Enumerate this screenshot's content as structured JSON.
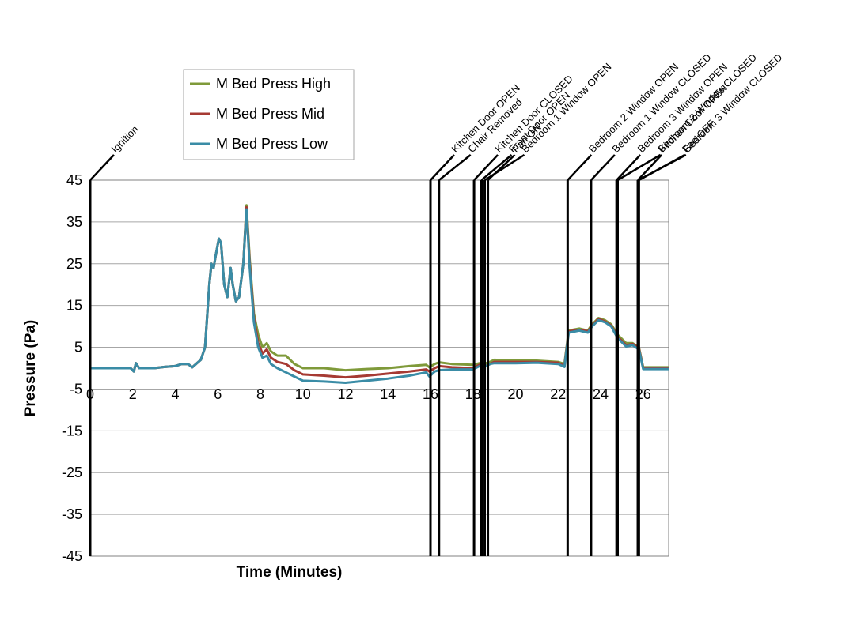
{
  "chart_data": {
    "type": "line",
    "title": "",
    "xlabel": "Time (Minutes)",
    "ylabel": "Pressure (Pa)",
    "xlim": [
      0,
      27.2
    ],
    "ylim": [
      -45,
      45
    ],
    "x_ticks": [
      "0",
      "2",
      "4",
      "6",
      "8",
      "10",
      "12",
      "14",
      "16",
      "18",
      "20",
      "22",
      "24",
      "26"
    ],
    "y_ticks": [
      "45",
      "35",
      "25",
      "15",
      "5",
      "-5",
      "-15",
      "-25",
      "-35",
      "-45"
    ],
    "grid": "horizontal",
    "legend_position": "top-left",
    "series": [
      {
        "name": "M Bed Press High",
        "color": "#7f9a3a",
        "points": [
          [
            0,
            0
          ],
          [
            1.9,
            0
          ],
          [
            2.05,
            -0.8
          ],
          [
            2.15,
            1.2
          ],
          [
            2.3,
            0
          ],
          [
            3,
            0
          ],
          [
            3.5,
            0.3
          ],
          [
            4,
            0.5
          ],
          [
            4.3,
            1
          ],
          [
            4.6,
            1
          ],
          [
            4.8,
            0.2
          ],
          [
            5.2,
            2
          ],
          [
            5.4,
            5
          ],
          [
            5.6,
            20
          ],
          [
            5.7,
            25
          ],
          [
            5.8,
            24
          ],
          [
            5.9,
            27
          ],
          [
            6.05,
            31
          ],
          [
            6.15,
            30
          ],
          [
            6.3,
            20
          ],
          [
            6.45,
            17
          ],
          [
            6.6,
            24
          ],
          [
            6.7,
            20
          ],
          [
            6.85,
            16
          ],
          [
            7.0,
            17
          ],
          [
            7.2,
            25
          ],
          [
            7.35,
            39
          ],
          [
            7.5,
            26
          ],
          [
            7.7,
            13
          ],
          [
            7.9,
            8
          ],
          [
            8.1,
            5
          ],
          [
            8.3,
            6
          ],
          [
            8.5,
            4
          ],
          [
            8.8,
            3
          ],
          [
            9.2,
            3
          ],
          [
            9.6,
            1
          ],
          [
            10,
            0
          ],
          [
            11,
            0
          ],
          [
            12,
            -0.5
          ],
          [
            13,
            -0.2
          ],
          [
            14,
            0
          ],
          [
            15,
            0.5
          ],
          [
            15.8,
            0.8
          ],
          [
            15.95,
            0.2
          ],
          [
            16.2,
            1
          ],
          [
            16.4,
            1.4
          ],
          [
            17,
            1
          ],
          [
            18,
            0.8
          ],
          [
            18.3,
            1.2
          ],
          [
            18.5,
            1
          ],
          [
            18.8,
            1.5
          ],
          [
            19,
            2
          ],
          [
            20,
            1.8
          ],
          [
            21,
            1.8
          ],
          [
            22,
            1.5
          ],
          [
            22.3,
            1
          ],
          [
            22.5,
            9
          ],
          [
            23,
            9.5
          ],
          [
            23.4,
            9
          ],
          [
            23.6,
            10.5
          ],
          [
            23.9,
            12
          ],
          [
            24.2,
            11.5
          ],
          [
            24.5,
            10.5
          ],
          [
            24.8,
            8
          ],
          [
            25.2,
            6
          ],
          [
            25.5,
            6
          ],
          [
            25.8,
            5
          ],
          [
            26,
            0.2
          ],
          [
            27.2,
            0.2
          ]
        ]
      },
      {
        "name": "M Bed Press Mid",
        "color": "#a63a33",
        "points": [
          [
            0,
            0
          ],
          [
            1.9,
            0
          ],
          [
            2.05,
            -0.8
          ],
          [
            2.15,
            1.2
          ],
          [
            2.3,
            0
          ],
          [
            3,
            0
          ],
          [
            3.5,
            0.3
          ],
          [
            4,
            0.5
          ],
          [
            4.3,
            1
          ],
          [
            4.6,
            1
          ],
          [
            4.8,
            0.2
          ],
          [
            5.2,
            2
          ],
          [
            5.4,
            5
          ],
          [
            5.6,
            20
          ],
          [
            5.7,
            25
          ],
          [
            5.8,
            24
          ],
          [
            5.9,
            27
          ],
          [
            6.05,
            31
          ],
          [
            6.15,
            30
          ],
          [
            6.3,
            20
          ],
          [
            6.45,
            17
          ],
          [
            6.6,
            24
          ],
          [
            6.7,
            20
          ],
          [
            6.85,
            16
          ],
          [
            7.0,
            17
          ],
          [
            7.2,
            25
          ],
          [
            7.35,
            38.5
          ],
          [
            7.5,
            25
          ],
          [
            7.7,
            12
          ],
          [
            7.9,
            6
          ],
          [
            8.1,
            3.5
          ],
          [
            8.3,
            4.5
          ],
          [
            8.5,
            2.5
          ],
          [
            8.8,
            1.5
          ],
          [
            9.2,
            1
          ],
          [
            9.6,
            -0.5
          ],
          [
            10,
            -1.5
          ],
          [
            11,
            -1.8
          ],
          [
            12,
            -2.2
          ],
          [
            13,
            -1.8
          ],
          [
            14,
            -1.3
          ],
          [
            15,
            -0.8
          ],
          [
            15.8,
            -0.3
          ],
          [
            15.95,
            -0.8
          ],
          [
            16.2,
            0
          ],
          [
            16.4,
            0.5
          ],
          [
            17,
            0.2
          ],
          [
            18,
            0
          ],
          [
            18.3,
            0.8
          ],
          [
            18.5,
            0.3
          ],
          [
            18.8,
            1
          ],
          [
            19,
            1.5
          ],
          [
            20,
            1.5
          ],
          [
            21,
            1.5
          ],
          [
            22,
            1.3
          ],
          [
            22.3,
            0.5
          ],
          [
            22.5,
            8.8
          ],
          [
            23,
            9.2
          ],
          [
            23.4,
            8.8
          ],
          [
            23.6,
            10.2
          ],
          [
            23.9,
            11.8
          ],
          [
            24.2,
            11.2
          ],
          [
            24.5,
            10.2
          ],
          [
            24.8,
            7.5
          ],
          [
            25.2,
            5.5
          ],
          [
            25.5,
            5.8
          ],
          [
            25.8,
            4.8
          ],
          [
            26,
            0
          ],
          [
            27.2,
            0
          ]
        ]
      },
      {
        "name": "M Bed Press Low",
        "color": "#3a8ca6",
        "points": [
          [
            0,
            0
          ],
          [
            1.9,
            0
          ],
          [
            2.05,
            -0.8
          ],
          [
            2.15,
            1.2
          ],
          [
            2.3,
            0
          ],
          [
            3,
            0
          ],
          [
            3.5,
            0.3
          ],
          [
            4,
            0.5
          ],
          [
            4.3,
            1
          ],
          [
            4.6,
            1
          ],
          [
            4.8,
            0.2
          ],
          [
            5.2,
            2
          ],
          [
            5.4,
            5
          ],
          [
            5.6,
            20
          ],
          [
            5.7,
            25
          ],
          [
            5.8,
            24
          ],
          [
            5.9,
            27
          ],
          [
            6.05,
            31
          ],
          [
            6.15,
            30
          ],
          [
            6.3,
            20
          ],
          [
            6.45,
            17
          ],
          [
            6.6,
            24
          ],
          [
            6.7,
            20
          ],
          [
            6.85,
            16
          ],
          [
            7.0,
            17
          ],
          [
            7.2,
            25
          ],
          [
            7.35,
            38
          ],
          [
            7.5,
            24
          ],
          [
            7.7,
            11
          ],
          [
            7.9,
            5
          ],
          [
            8.1,
            2.5
          ],
          [
            8.3,
            3
          ],
          [
            8.5,
            1
          ],
          [
            8.8,
            0
          ],
          [
            9.2,
            -1
          ],
          [
            9.6,
            -2
          ],
          [
            10,
            -3
          ],
          [
            11,
            -3.2
          ],
          [
            12,
            -3.5
          ],
          [
            13,
            -3
          ],
          [
            14,
            -2.5
          ],
          [
            15,
            -1.8
          ],
          [
            15.8,
            -1
          ],
          [
            15.95,
            -2
          ],
          [
            16.2,
            -0.8
          ],
          [
            16.4,
            -0.5
          ],
          [
            17,
            -0.3
          ],
          [
            18,
            -0.3
          ],
          [
            18.3,
            0.5
          ],
          [
            18.5,
            0.2
          ],
          [
            18.8,
            1
          ],
          [
            19,
            1.2
          ],
          [
            20,
            1.2
          ],
          [
            21,
            1.3
          ],
          [
            22,
            1
          ],
          [
            22.3,
            0.3
          ],
          [
            22.5,
            8.5
          ],
          [
            23,
            9
          ],
          [
            23.4,
            8.5
          ],
          [
            23.6,
            10
          ],
          [
            23.9,
            11.5
          ],
          [
            24.2,
            11
          ],
          [
            24.5,
            10
          ],
          [
            24.8,
            7.2
          ],
          [
            25.2,
            5.2
          ],
          [
            25.5,
            5.5
          ],
          [
            25.8,
            4.5
          ],
          [
            26,
            -0.2
          ],
          [
            27.2,
            -0.2
          ]
        ]
      }
    ],
    "events": [
      {
        "label": "Ignition",
        "x": 0
      },
      {
        "label": "Kitchen Door OPEN",
        "x": 16.0
      },
      {
        "label": "Chair Removed",
        "x": 16.4
      },
      {
        "label": "Kitchen Door CLOSED",
        "x": 18.05
      },
      {
        "label": "Front Door OPEN",
        "x": 18.4
      },
      {
        "label": "Bedroom 1 Window OPEN",
        "x": 18.55
      },
      {
        "label": "Fan ON",
        "x": 18.7
      },
      {
        "label": "Bedroom 2 Window OPEN",
        "x": 22.45
      },
      {
        "label": "Bedroom 1 Window CLOSED",
        "x": 23.55
      },
      {
        "label": "Bedroom 3 Window OPEN",
        "x": 24.75
      },
      {
        "label": "Bedroom 2 Window CLOSED",
        "x": 24.8
      },
      {
        "label": "Kitchen Door OPEN",
        "x": 25.75
      },
      {
        "label": "Bedroom 3 Window CLOSED",
        "x": 25.78
      },
      {
        "label": "Fan OFF",
        "x": 25.8
      }
    ]
  }
}
